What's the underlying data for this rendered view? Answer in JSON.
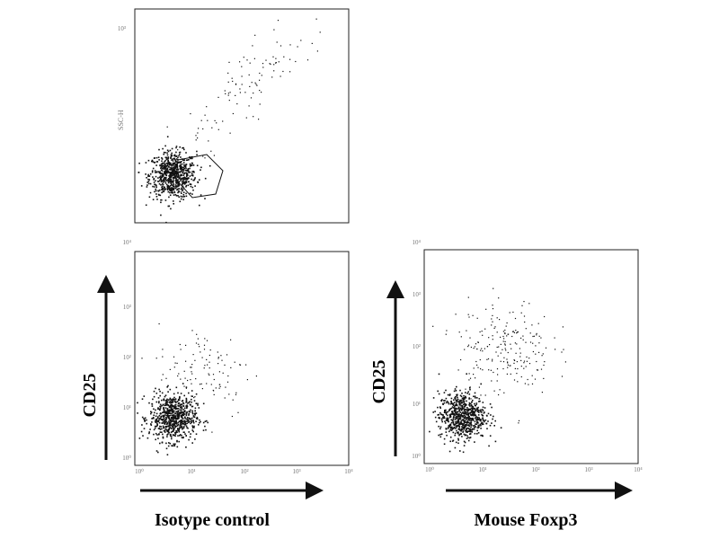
{
  "figure": {
    "panels": [
      {
        "id": "top",
        "ylabel": "",
        "xlabel": "",
        "side_label": "SSC-H",
        "y_ticks": [
          "10³",
          "",
          "",
          "",
          ""
        ],
        "x_ticks": []
      },
      {
        "id": "bottom-left",
        "ylabel": "CD25",
        "xlabel": "Isotype control",
        "side_label": "",
        "y_ticks": [
          "10⁴",
          "10³",
          "10²",
          "10¹",
          "10⁰"
        ],
        "x_ticks": [
          "10⁰",
          "10¹",
          "10²",
          "10³",
          "10⁴"
        ]
      },
      {
        "id": "bottom-right",
        "ylabel": "CD25",
        "xlabel": "Mouse Foxp3",
        "side_label": "",
        "y_ticks": [
          "10⁴",
          "10³",
          "10²",
          "10¹",
          "10⁰"
        ],
        "x_ticks": [
          "10⁰",
          "10¹",
          "10²",
          "10³",
          "10⁴"
        ]
      }
    ]
  },
  "colors": {
    "dots": "#111111",
    "frame": "#222222",
    "background": "#ffffff"
  },
  "chart_data": [
    {
      "type": "scatter",
      "title": "",
      "xlabel": "",
      "ylabel": "",
      "xscale": "log",
      "yscale": "log",
      "xlim": [
        1,
        10000
      ],
      "ylim": [
        1,
        10000
      ],
      "gate": "polygon around main population",
      "populations": [
        {
          "center_x": 5,
          "center_y": 8,
          "density": "high"
        },
        {
          "center_x": 100,
          "center_y": 300,
          "density": "low",
          "spread": "diagonal"
        }
      ]
    },
    {
      "type": "scatter",
      "title": "",
      "xlabel": "Isotype control",
      "ylabel": "CD25",
      "xscale": "log",
      "yscale": "log",
      "xlim": [
        1,
        10000
      ],
      "ylim": [
        1,
        10000
      ],
      "populations": [
        {
          "center_x": 5,
          "center_y": 8,
          "density": "high"
        },
        {
          "center_x": 20,
          "center_y": 60,
          "density": "low"
        }
      ]
    },
    {
      "type": "scatter",
      "title": "",
      "xlabel": "Mouse Foxp3",
      "ylabel": "CD25",
      "xscale": "log",
      "yscale": "log",
      "xlim": [
        1,
        10000
      ],
      "ylim": [
        1,
        10000
      ],
      "populations": [
        {
          "center_x": 5,
          "center_y": 8,
          "density": "high"
        },
        {
          "center_x": 30,
          "center_y": 150,
          "density": "medium"
        }
      ]
    }
  ]
}
